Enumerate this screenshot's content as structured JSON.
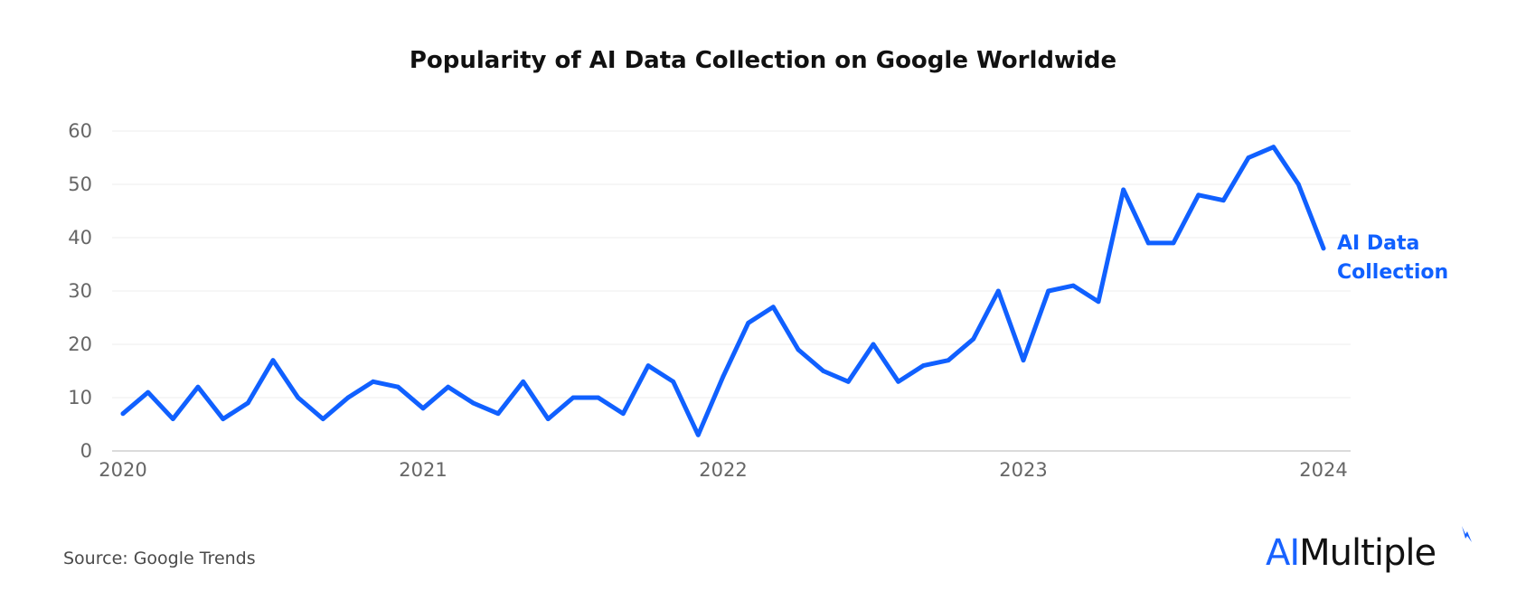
{
  "colors": {
    "series": "#1060ff",
    "grid": "#ececec",
    "axis": "#cfcfcf",
    "tick_text": "#666666"
  },
  "brand": {
    "part1": "AI",
    "part2": "Multiple"
  },
  "source": "Source: Google Trends",
  "chart_data": {
    "type": "line",
    "title": "Popularity of AI Data Collection on Google Worldwide",
    "xlabel": "",
    "ylabel": "",
    "ylim": [
      0,
      60
    ],
    "yticks": [
      0,
      10,
      20,
      30,
      40,
      50,
      60
    ],
    "xticks": [
      "2020",
      "2021",
      "2022",
      "2023",
      "2024"
    ],
    "xlim": [
      "2020-01",
      "2024-01"
    ],
    "grid": true,
    "legend": "none",
    "series": [
      {
        "name": "AI Data Collection",
        "x": [
          "2020-01",
          "2020-02",
          "2020-03",
          "2020-04",
          "2020-05",
          "2020-06",
          "2020-07",
          "2020-08",
          "2020-09",
          "2020-10",
          "2020-11",
          "2020-12",
          "2021-01",
          "2021-02",
          "2021-03",
          "2021-04",
          "2021-05",
          "2021-06",
          "2021-07",
          "2021-08",
          "2021-09",
          "2021-10",
          "2021-11",
          "2021-12",
          "2022-01",
          "2022-02",
          "2022-03",
          "2022-04",
          "2022-05",
          "2022-06",
          "2022-07",
          "2022-08",
          "2022-09",
          "2022-10",
          "2022-11",
          "2022-12",
          "2023-01",
          "2023-02",
          "2023-03",
          "2023-04",
          "2023-05",
          "2023-06",
          "2023-07",
          "2023-08",
          "2023-09",
          "2023-10",
          "2023-11",
          "2023-12",
          "2024-01"
        ],
        "values": [
          7,
          11,
          6,
          12,
          6,
          9,
          17,
          10,
          6,
          10,
          13,
          12,
          8,
          12,
          9,
          7,
          13,
          6,
          10,
          10,
          7,
          16,
          13,
          3,
          14,
          24,
          27,
          19,
          15,
          13,
          20,
          13,
          16,
          17,
          21,
          30,
          17,
          30,
          31,
          28,
          49,
          39,
          39,
          48,
          47,
          55,
          57,
          50,
          38
        ]
      }
    ]
  }
}
